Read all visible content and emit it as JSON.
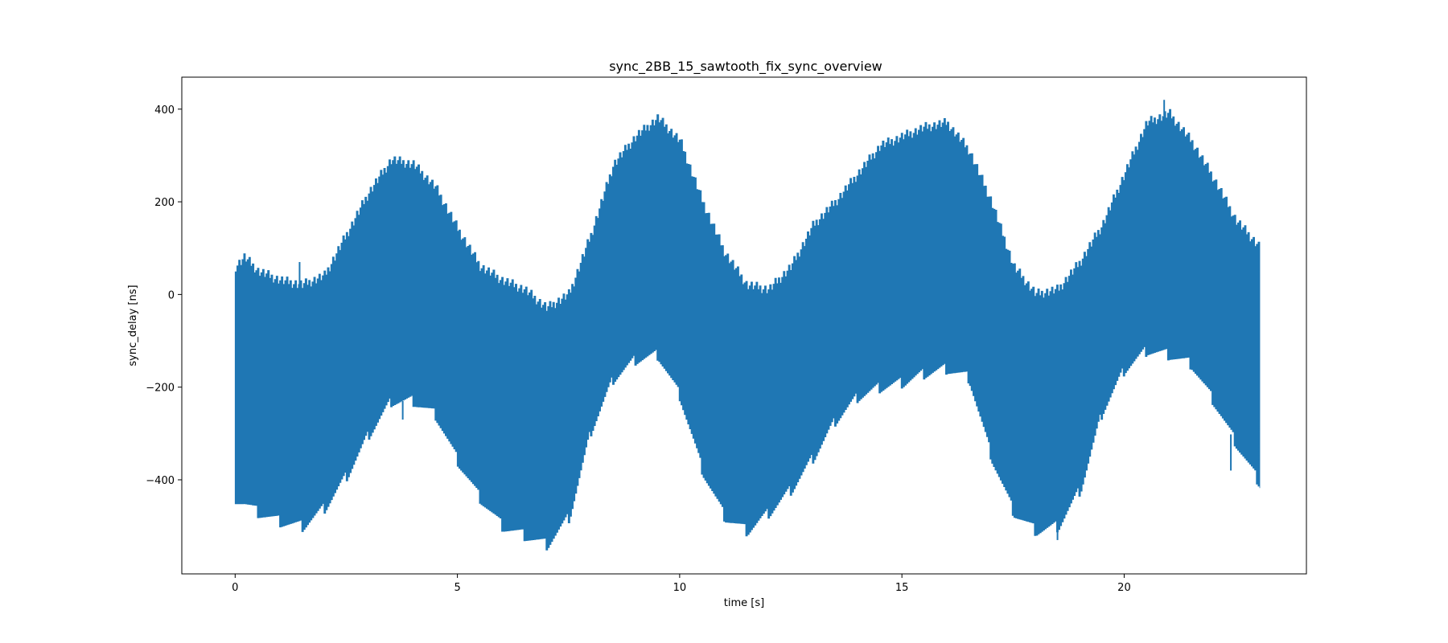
{
  "chart_data": {
    "type": "area",
    "title": "sync_2BB_15_sawtooth_fix_sync_overview",
    "xlabel": "time [s]",
    "ylabel": "sync_delay [ns]",
    "xlim": [
      -1.2,
      24.1
    ],
    "ylim": [
      -603,
      469
    ],
    "xticks": [
      0,
      5,
      10,
      15,
      20
    ],
    "xtick_labels": [
      "0",
      "5",
      "10",
      "15",
      "20"
    ],
    "yticks": [
      -400,
      -200,
      0,
      200,
      400
    ],
    "ytick_labels": [
      "−400",
      "−200",
      "0",
      "200",
      "400"
    ],
    "grid": false,
    "legend": "none",
    "color": "#1f77b4",
    "series": [
      {
        "x": [
          0,
          0.2,
          0.5,
          1.0,
          1.5,
          2.0,
          2.5,
          3.0,
          3.5,
          4.0,
          4.5,
          5.0,
          5.5,
          6.0,
          6.5,
          7.0,
          7.5,
          8.0,
          8.5,
          9.0,
          9.5,
          10.0,
          10.5,
          11.0,
          11.5,
          12.0,
          12.5,
          13.0,
          13.5,
          14.0,
          14.5,
          15.0,
          15.5,
          16.0,
          16.5,
          17.0,
          17.5,
          18.0,
          18.5,
          19.0,
          19.5,
          20.0,
          20.5,
          21.0,
          21.5,
          22.0,
          22.5,
          23.05
        ],
        "upper": [
          60,
          80,
          50,
          30,
          20,
          40,
          130,
          220,
          290,
          280,
          230,
          140,
          60,
          30,
          10,
          -30,
          0,
          130,
          280,
          340,
          380,
          330,
          200,
          90,
          20,
          10,
          60,
          150,
          200,
          260,
          320,
          340,
          360,
          370,
          310,
          200,
          60,
          0,
          10,
          70,
          150,
          260,
          370,
          390,
          330,
          250,
          160,
          100
        ],
        "lower": [
          -440,
          -450,
          -470,
          -490,
          -500,
          -460,
          -390,
          -300,
          -230,
          -230,
          -260,
          -360,
          -440,
          -500,
          -520,
          -540,
          -480,
          -290,
          -180,
          -140,
          -130,
          -220,
          -380,
          -480,
          -510,
          -470,
          -420,
          -350,
          -270,
          -220,
          -200,
          -190,
          -170,
          -160,
          -180,
          -350,
          -470,
          -510,
          -500,
          -420,
          -250,
          -160,
          -120,
          -130,
          -150,
          -230,
          -320,
          -410
        ],
        "spikes": [
          {
            "x": 1.45,
            "y": 70
          },
          {
            "x": 3.77,
            "y": -270
          },
          {
            "x": 20.9,
            "y": 420
          },
          {
            "x": 18.5,
            "y": -530
          },
          {
            "x": 22.4,
            "y": -380
          }
        ]
      }
    ]
  }
}
